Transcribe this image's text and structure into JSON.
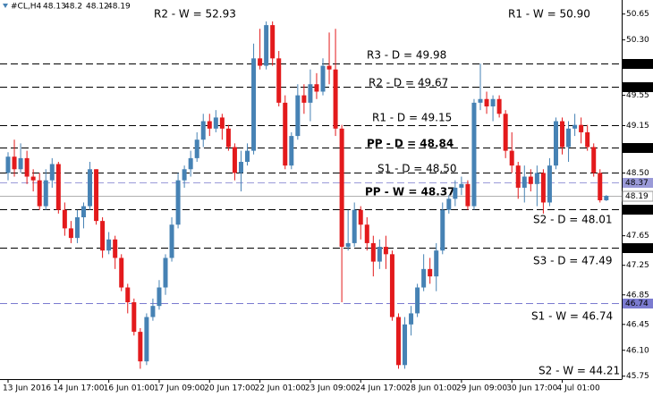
{
  "chart_data": {
    "type": "candlestick",
    "symbol": "#CL,H4",
    "categories": [
      "13 Jun 2016",
      null,
      null,
      null,
      null,
      null,
      null,
      null,
      "14 Jun 17:00",
      null,
      null,
      null,
      null,
      null,
      null,
      null,
      "16 Jun 01:00",
      null,
      null,
      null,
      null,
      null,
      null,
      null,
      "17 Jun 09:00",
      null,
      null,
      null,
      null,
      null,
      null,
      null,
      "20 Jun 17:00",
      null,
      null,
      null,
      null,
      null,
      null,
      null,
      "22 Jun 01:00",
      null,
      null,
      null,
      null,
      null,
      null,
      null,
      "23 Jun 09:00",
      null,
      null,
      null,
      null,
      null,
      null,
      null,
      "24 Jun 17:00",
      null,
      null,
      null,
      null,
      null,
      null,
      null,
      "28 Jun 01:00",
      null,
      null,
      null,
      null,
      null,
      null,
      null,
      "29 Jun 09:00",
      null,
      null,
      null,
      null,
      null,
      null,
      null,
      "30 Jun 17:00",
      null,
      null,
      null,
      null,
      null,
      null,
      null,
      "4 Jul 01:00",
      null,
      null,
      null,
      null,
      null,
      null,
      null
    ],
    "open": [
      48.5,
      48.72,
      48.55,
      48.7,
      48.45,
      48.4,
      48.05,
      48.4,
      48.62,
      48.0,
      47.75,
      47.62,
      47.9,
      48.05,
      48.55,
      47.85,
      47.45,
      47.6,
      47.35,
      46.95,
      46.75,
      46.35,
      45.95,
      46.55,
      46.7,
      46.95,
      47.35,
      47.8,
      48.4,
      48.55,
      48.7,
      48.95,
      49.2,
      49.1,
      49.25,
      49.1,
      48.85,
      48.5,
      48.65,
      48.8,
      50.05,
      49.95,
      50.5,
      50.05,
      49.45,
      48.6,
      49.0,
      49.55,
      49.45,
      49.7,
      49.6,
      49.95,
      49.9,
      49.1,
      47.5,
      47.55,
      48.0,
      47.8,
      47.55,
      47.3,
      47.5,
      47.4,
      46.55,
      45.9,
      46.45,
      46.6,
      46.95,
      47.2,
      47.1,
      47.45,
      48.0,
      48.15,
      48.3,
      48.35,
      48.05,
      49.45,
      49.5,
      49.4,
      49.5,
      49.3,
      48.8,
      48.6,
      48.3,
      48.45,
      48.35,
      48.5,
      48.1,
      48.6,
      49.2,
      48.85,
      49.1,
      49.15,
      49.05,
      48.85,
      48.5,
      48.13
    ],
    "high": [
      48.78,
      48.95,
      48.9,
      48.8,
      48.55,
      48.5,
      48.55,
      48.7,
      48.65,
      48.1,
      47.85,
      48.0,
      48.1,
      48.65,
      48.55,
      47.9,
      47.7,
      47.65,
      47.4,
      47.0,
      46.8,
      46.4,
      46.6,
      46.8,
      47.05,
      47.4,
      47.9,
      48.5,
      48.6,
      48.8,
      49.05,
      49.3,
      49.3,
      49.35,
      49.3,
      49.15,
      48.9,
      48.8,
      48.9,
      50.25,
      50.45,
      50.55,
      50.55,
      50.15,
      49.55,
      49.05,
      49.7,
      49.7,
      49.9,
      49.85,
      50.05,
      50.4,
      50.45,
      49.15,
      48.0,
      48.1,
      48.05,
      47.9,
      47.65,
      47.6,
      47.65,
      47.45,
      46.6,
      46.55,
      46.7,
      47.0,
      47.4,
      47.35,
      47.55,
      48.1,
      48.2,
      48.4,
      48.45,
      48.4,
      49.5,
      49.98,
      49.6,
      49.55,
      49.55,
      49.35,
      49.05,
      48.65,
      48.6,
      48.55,
      48.6,
      48.55,
      48.7,
      49.25,
      49.25,
      49.2,
      49.3,
      49.25,
      49.15,
      48.9,
      48.55,
      48.2
    ],
    "low": [
      48.4,
      48.45,
      48.5,
      48.35,
      48.25,
      48.0,
      48.0,
      48.3,
      47.95,
      47.65,
      47.55,
      47.55,
      47.75,
      48.0,
      47.8,
      47.35,
      47.4,
      47.2,
      46.9,
      46.6,
      46.3,
      45.85,
      45.9,
      46.5,
      46.65,
      46.85,
      47.3,
      47.75,
      48.3,
      48.45,
      48.65,
      48.85,
      49.0,
      49.05,
      48.95,
      48.8,
      48.4,
      48.25,
      48.6,
      48.75,
      49.9,
      49.9,
      49.95,
      49.4,
      48.55,
      48.55,
      48.95,
      49.3,
      49.2,
      49.5,
      49.55,
      49.7,
      49.0,
      46.75,
      47.45,
      47.5,
      47.6,
      47.45,
      47.1,
      47.2,
      47.2,
      46.5,
      45.85,
      45.85,
      46.3,
      46.55,
      46.9,
      47.0,
      46.9,
      47.4,
      47.95,
      48.05,
      48.2,
      48.0,
      48.0,
      49.35,
      49.3,
      49.2,
      49.25,
      48.7,
      48.5,
      48.15,
      48.1,
      48.25,
      48.05,
      47.95,
      48.05,
      48.55,
      48.75,
      48.65,
      49.0,
      48.9,
      48.8,
      48.45,
      48.1,
      48.12
    ],
    "close": [
      48.72,
      48.55,
      48.7,
      48.45,
      48.4,
      48.05,
      48.4,
      48.62,
      48.0,
      47.75,
      47.62,
      47.9,
      48.05,
      48.55,
      47.85,
      47.45,
      47.6,
      47.35,
      46.95,
      46.75,
      46.35,
      45.95,
      46.55,
      46.7,
      46.95,
      47.35,
      47.8,
      48.4,
      48.55,
      48.7,
      48.95,
      49.2,
      49.1,
      49.25,
      49.1,
      48.85,
      48.5,
      48.65,
      48.8,
      50.05,
      49.95,
      50.5,
      50.05,
      49.45,
      48.6,
      49.0,
      49.55,
      49.45,
      49.7,
      49.6,
      49.95,
      49.9,
      49.1,
      47.5,
      47.55,
      48.0,
      47.8,
      47.55,
      47.3,
      47.5,
      47.4,
      46.55,
      45.9,
      46.45,
      46.6,
      46.95,
      47.2,
      47.1,
      47.45,
      48.0,
      48.15,
      48.3,
      48.35,
      48.05,
      49.45,
      49.5,
      49.4,
      49.5,
      49.3,
      48.8,
      48.6,
      48.3,
      48.45,
      48.35,
      48.5,
      48.1,
      48.6,
      49.2,
      48.85,
      49.1,
      49.15,
      49.05,
      48.85,
      48.5,
      48.13,
      48.19
    ],
    "up_color": "#4682b4",
    "down_color": "#e31a1c",
    "current_price": 48.19,
    "ylim": [
      45.71,
      50.84
    ],
    "yticks": [
      50.65,
      {
        "value": 50.3,
        "label": "50.30"
      },
      49.55,
      47.65,
      47.25,
      46.85,
      46.45,
      {
        "value": 46.1,
        "label": "46.10"
      },
      45.75
    ],
    "levels": [
      {
        "label": "R2 - W = 52.93",
        "value": 52.93,
        "line_color": "#7b7bd0",
        "text_color": "#7b7bc8"
      },
      {
        "label": "R1 - W = 50.90",
        "value": 50.9,
        "line_color": "#7b7bd0",
        "text_color": "#7b7bc8"
      },
      {
        "label": "R3 - D = 49.98",
        "value": 49.98,
        "line_color": "#000000",
        "text_color": "#e0202a",
        "axis_box": true
      },
      {
        "label": "R2 - D = 49.67",
        "value": 49.67,
        "line_color": "#000000",
        "text_color": "#e0202a",
        "axis_box": true
      },
      {
        "label": "R1 - D = 49.15",
        "value": 49.15,
        "line_color": "#000000",
        "text_color": "#e0202a",
        "axis_box": false
      },
      {
        "label": "PP - D = 48.84",
        "value": 48.84,
        "line_color": "#000000",
        "text_color": "#3355cc",
        "bold": true,
        "axis_box": true
      },
      {
        "label": "S1 - D = 48.50",
        "value": 48.5,
        "axis_label": "48.50",
        "line_color": "#000000",
        "text_color": "#e0202a",
        "axis_box": false
      },
      {
        "label": "PP - W = 48.37",
        "value": 48.37,
        "line_color": "#9a9ad8",
        "text_color": "#5555cc",
        "bold": true,
        "axis_box": true
      },
      {
        "label": "S2 - D = 48.01",
        "value": 48.01,
        "line_color": "#000000",
        "text_color": "#e0202a",
        "axis_box": true
      },
      {
        "label": "S3 - D = 47.49",
        "value": 47.49,
        "line_color": "#000000",
        "text_color": "#e0202a",
        "axis_box": true
      },
      {
        "label": "S1 - W = 46.74",
        "value": 46.74,
        "line_color": "#7b7bd0",
        "text_color": "#7b7bc8",
        "axis_box": true
      },
      {
        "label": "S2 - W = 44.21",
        "value": 44.21,
        "line_color": "#7b7bd0",
        "text_color": "#7b7bc8"
      }
    ]
  }
}
